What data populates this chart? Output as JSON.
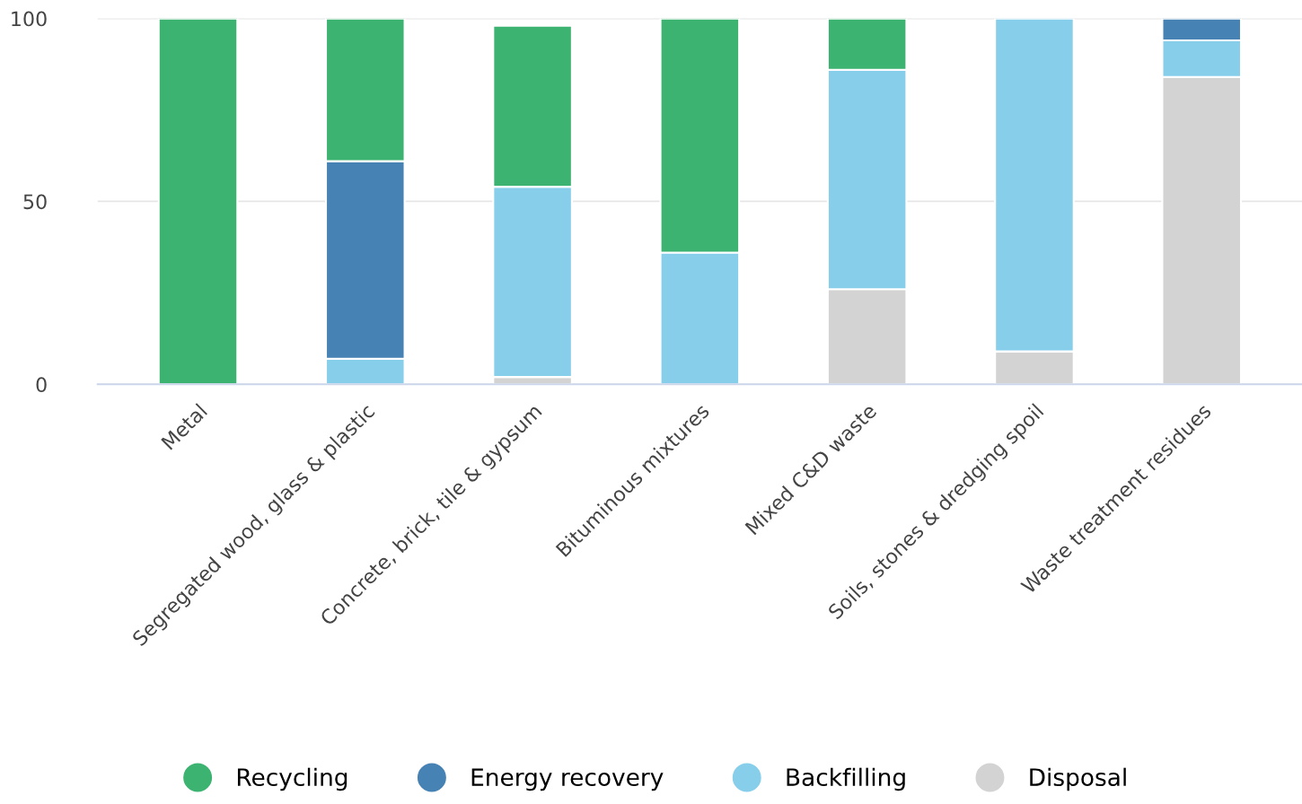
{
  "chart_data": {
    "type": "bar",
    "stacked": true,
    "categories": [
      "Metal",
      "Segregated wood, glass & plastic",
      "Concrete, brick, tile & gypsum",
      "Bituminous mixtures",
      "Mixed C&D waste",
      "Soils, stones & dredging spoil",
      "Waste treatment residues"
    ],
    "series": [
      {
        "name": "Disposal",
        "color": "#d3d3d3",
        "values": [
          0,
          0,
          2,
          0,
          26,
          9,
          84
        ]
      },
      {
        "name": "Backfilling",
        "color": "#87ceeb",
        "values": [
          0,
          7,
          52,
          36,
          60,
          91,
          10
        ]
      },
      {
        "name": "Energy recovery",
        "color": "#4682b4",
        "values": [
          0,
          54,
          0,
          0,
          0,
          0,
          6
        ]
      },
      {
        "name": "Recycling",
        "color": "#3cb371",
        "values": [
          100,
          39,
          44,
          64,
          14,
          0,
          0
        ]
      }
    ],
    "ylim": [
      0,
      100
    ],
    "yticks": [
      0,
      50,
      100
    ],
    "grid": "y",
    "legend": "bottom"
  }
}
